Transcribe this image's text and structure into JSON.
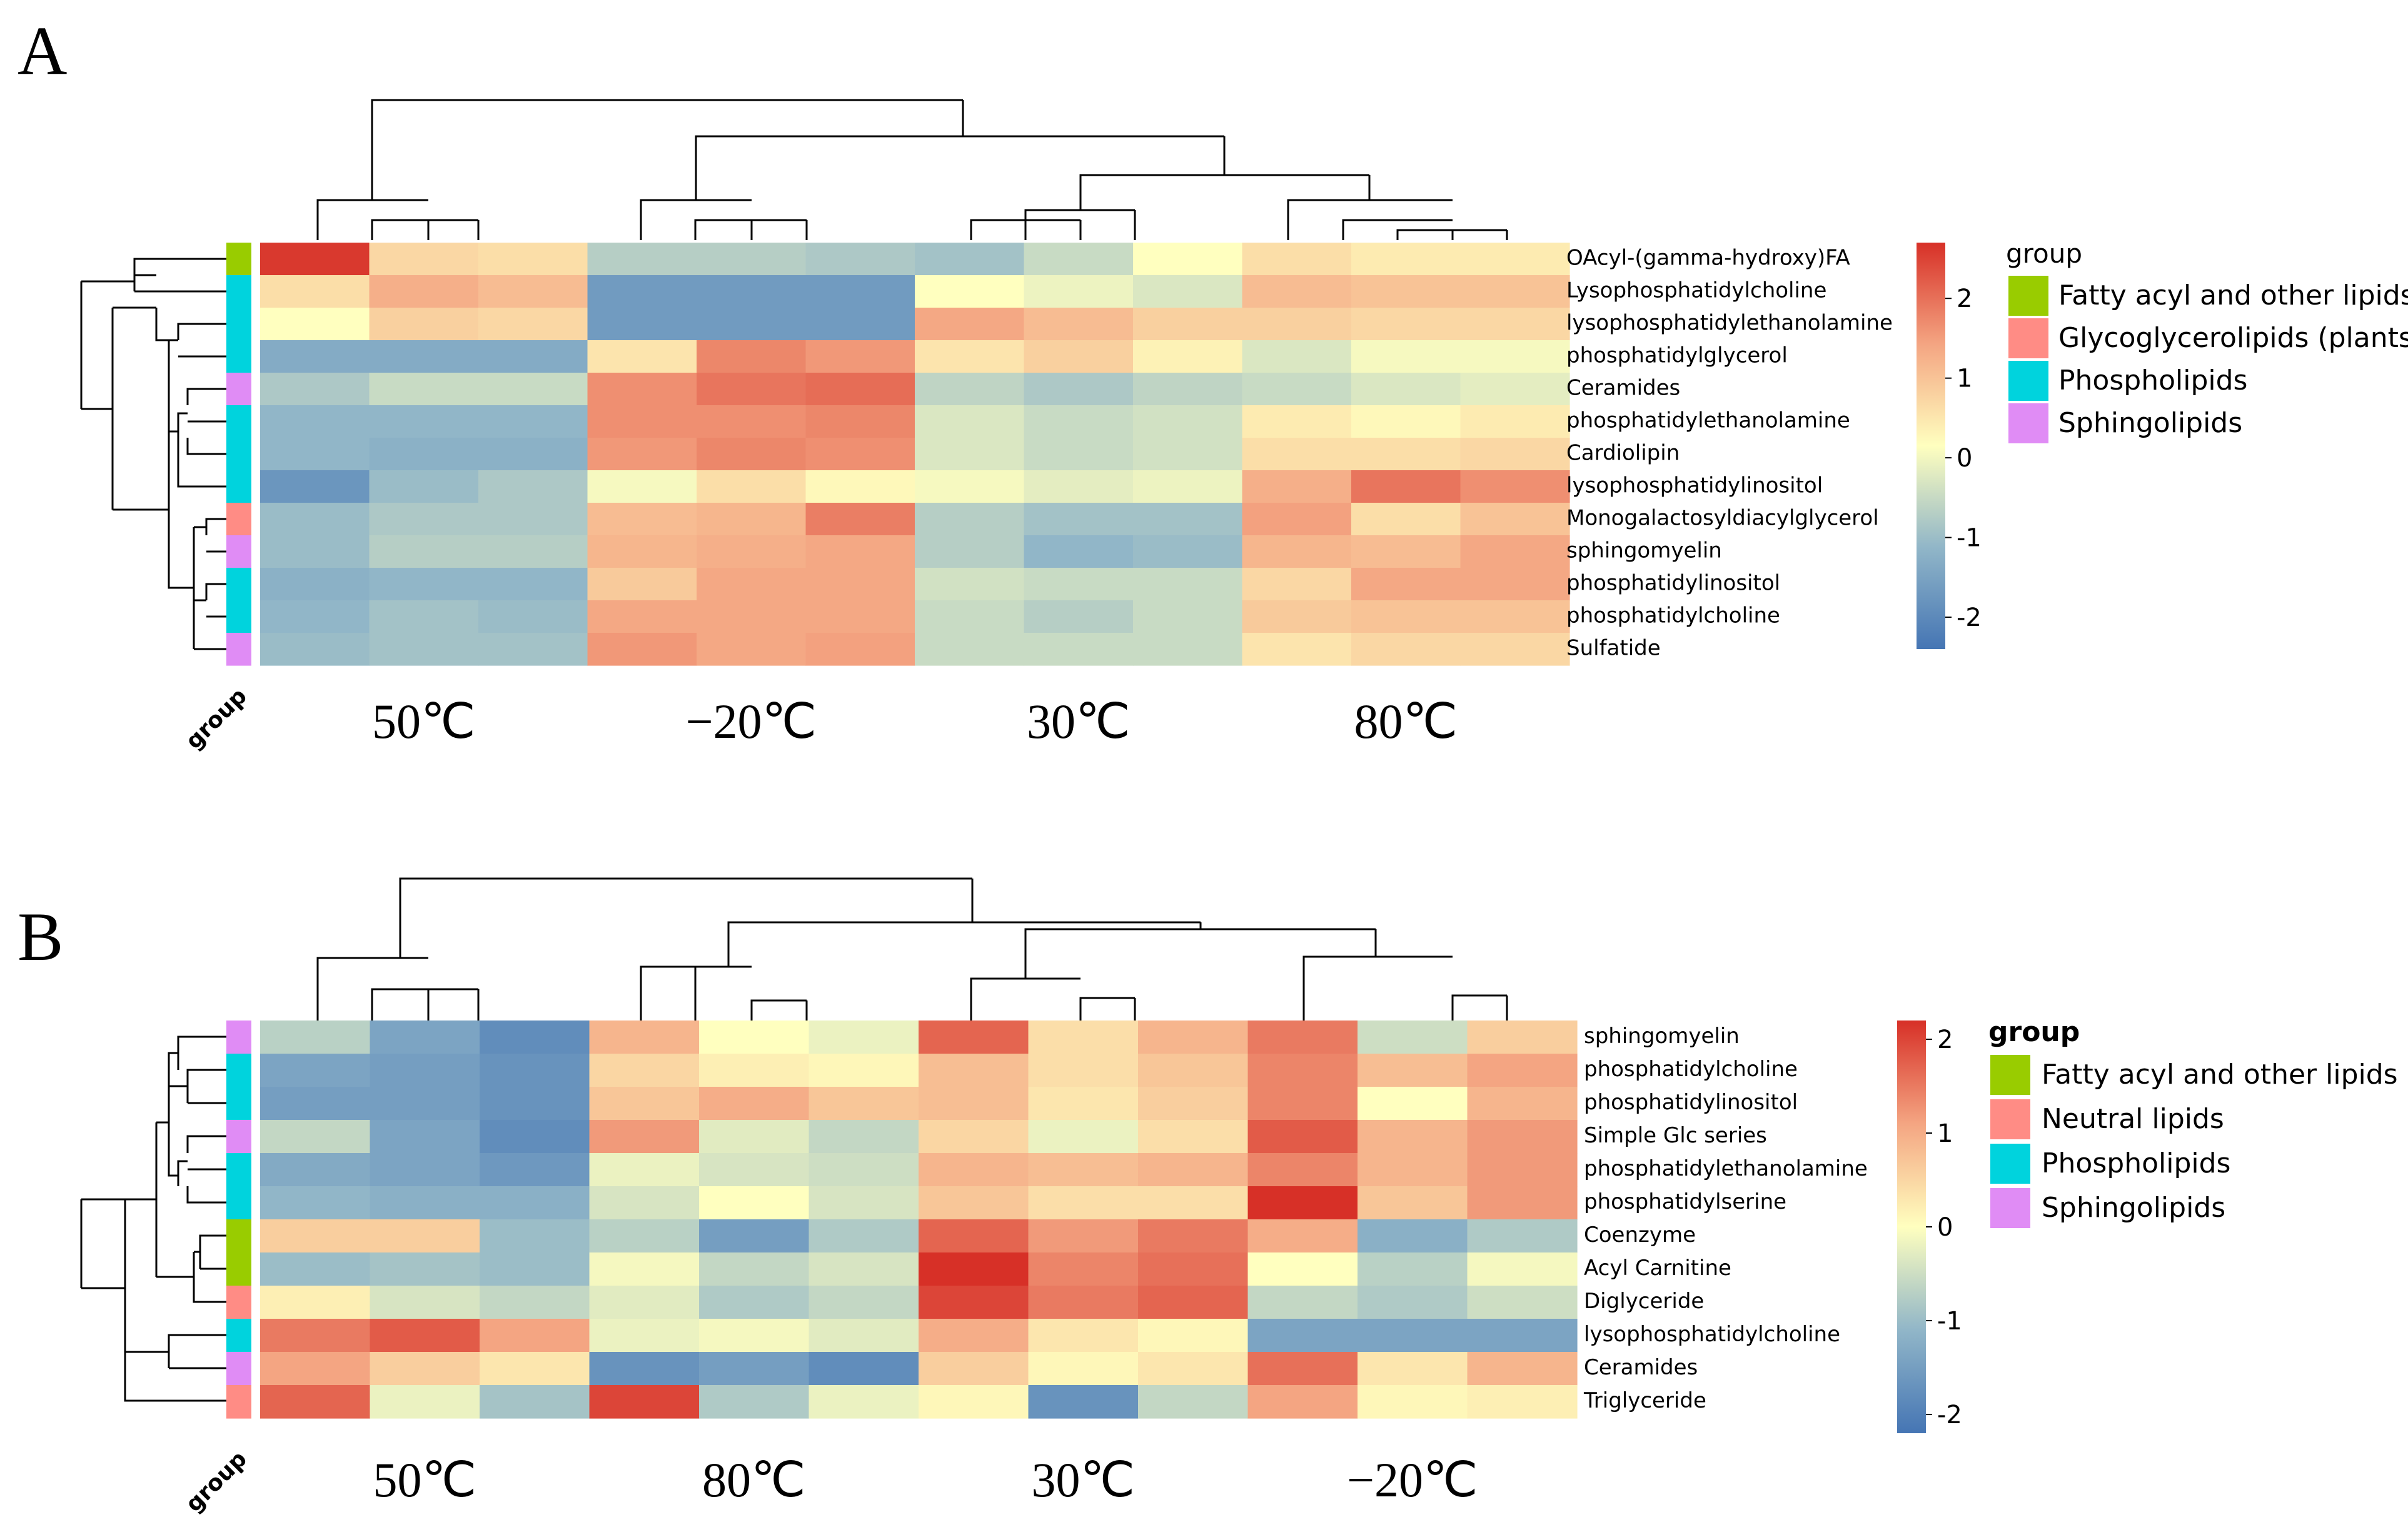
{
  "colors": {
    "scale": [
      "#4575b4",
      "#91b6c8",
      "#ffffbf",
      "#f4a582",
      "#d73027"
    ],
    "groups": {
      "Fatty acyl and other lipids": "#99cc00",
      "Glycoglycerolipids (plants)": "#ff8c85",
      "Neutral lipids": "#ff8c85",
      "Phospholipids": "#00d3dd",
      "Sphingolipids": "#e08cf5"
    }
  },
  "chart_data": [
    {
      "type": "heatmap",
      "panel": "A",
      "title": "",
      "rows": [
        "OAcyl-(gamma-hydroxy)FA",
        "Lysophosphatidylcholine",
        "lysophosphatidylethanolamine",
        "phosphatidylglycerol",
        "Ceramides",
        "phosphatidylethanolamine",
        "Cardiolipin",
        "lysophosphatidylinositol",
        "Monogalactosyldiacylglycerol",
        "sphingomyelin",
        "phosphatidylinositol",
        "phosphatidylcholine",
        "Sulfatide"
      ],
      "row_groups": [
        "Fatty acyl and other lipids",
        "Phospholipids",
        "Phospholipids",
        "Phospholipids",
        "Sphingolipids",
        "Phospholipids",
        "Phospholipids",
        "Phospholipids",
        "Glycoglycerolipids (plants)",
        "Sphingolipids",
        "Phospholipids",
        "Phospholipids",
        "Sphingolipids"
      ],
      "conditions": [
        "50℃",
        "−20℃",
        "30℃",
        "80℃"
      ],
      "column_condition": [
        0,
        0,
        0,
        1,
        1,
        1,
        2,
        2,
        2,
        3,
        3,
        3
      ],
      "values": [
        [
          2.6,
          0.6,
          0.5,
          -0.8,
          -0.8,
          -0.9,
          -1.0,
          -0.6,
          0.0,
          0.5,
          0.3,
          0.3
        ],
        [
          0.5,
          1.2,
          1.0,
          -1.7,
          -1.7,
          -1.7,
          0.0,
          -0.2,
          -0.4,
          1.0,
          0.9,
          0.9
        ],
        [
          0.0,
          0.7,
          0.6,
          -1.7,
          -1.7,
          -1.7,
          1.3,
          1.0,
          0.7,
          0.7,
          0.6,
          0.6
        ],
        [
          -1.4,
          -1.4,
          -1.4,
          0.4,
          1.7,
          1.5,
          0.4,
          0.7,
          0.2,
          -0.4,
          -0.1,
          -0.1
        ],
        [
          -0.9,
          -0.6,
          -0.6,
          1.6,
          1.9,
          2.0,
          -0.7,
          -0.9,
          -0.7,
          -0.6,
          -0.4,
          -0.3
        ],
        [
          -1.2,
          -1.2,
          -1.2,
          1.6,
          1.6,
          1.7,
          -0.4,
          -0.6,
          -0.5,
          0.3,
          0.1,
          0.3
        ],
        [
          -1.2,
          -1.3,
          -1.3,
          1.5,
          1.7,
          1.6,
          -0.4,
          -0.6,
          -0.5,
          0.5,
          0.5,
          0.6
        ],
        [
          -1.8,
          -1.1,
          -0.9,
          -0.1,
          0.5,
          0.1,
          -0.1,
          -0.3,
          -0.2,
          1.2,
          1.9,
          1.6
        ],
        [
          -1.1,
          -0.9,
          -0.9,
          1.0,
          1.1,
          1.8,
          -0.8,
          -1.0,
          -1.0,
          1.4,
          0.5,
          0.9
        ],
        [
          -1.1,
          -0.8,
          -0.8,
          1.1,
          1.2,
          1.3,
          -0.8,
          -1.2,
          -1.1,
          1.1,
          1.0,
          1.3
        ],
        [
          -1.3,
          -1.2,
          -1.2,
          0.8,
          1.3,
          1.3,
          -0.5,
          -0.6,
          -0.6,
          0.6,
          1.3,
          1.3
        ],
        [
          -1.2,
          -1.0,
          -1.1,
          1.3,
          1.3,
          1.3,
          -0.6,
          -0.8,
          -0.6,
          0.8,
          0.9,
          0.9
        ],
        [
          -1.1,
          -1.0,
          -1.0,
          1.5,
          1.3,
          1.4,
          -0.6,
          -0.6,
          -0.6,
          0.4,
          0.6,
          0.6
        ]
      ],
      "colorbar": {
        "ticks": [
          2,
          1,
          0,
          -1,
          -2
        ],
        "tick_labels": [
          "2",
          "1",
          "0",
          "-1",
          "-2"
        ],
        "min": -2.4,
        "max": 2.7
      },
      "legend": {
        "title": "group",
        "items": [
          "Fatty acyl and other lipids",
          "Glycoglycerolipids (plants)",
          "Phospholipids",
          "Sphingolipids"
        ]
      },
      "group_axis_label": "group"
    },
    {
      "type": "heatmap",
      "panel": "B",
      "title": "",
      "rows": [
        "sphingomyelin",
        "phosphatidylcholine",
        "phosphatidylinositol",
        "Simple Glc series",
        "phosphatidylethanolamine",
        "phosphatidylserine",
        "Coenzyme",
        "Acyl Carnitine",
        "Diglyceride",
        "lysophosphatidylcholine",
        "Ceramides",
        "Triglyceride"
      ],
      "row_groups": [
        "Sphingolipids",
        "Phospholipids",
        "Phospholipids",
        "Sphingolipids",
        "Phospholipids",
        "Phospholipids",
        "Fatty acyl and other lipids",
        "Fatty acyl and other lipids",
        "Neutral lipids",
        "Phospholipids",
        "Sphingolipids",
        "Neutral lipids"
      ],
      "conditions": [
        "50℃",
        "80℃",
        "30℃",
        "−20℃"
      ],
      "column_condition": [
        0,
        0,
        0,
        1,
        1,
        1,
        2,
        2,
        2,
        3,
        3,
        3
      ],
      "values": [
        [
          -0.7,
          -1.4,
          -1.8,
          0.9,
          0.0,
          -0.2,
          1.7,
          0.4,
          0.9,
          1.5,
          -0.5,
          0.6
        ],
        [
          -1.4,
          -1.5,
          -1.7,
          0.5,
          0.2,
          0.1,
          0.8,
          0.4,
          0.7,
          1.4,
          0.8,
          1.1
        ],
        [
          -1.5,
          -1.5,
          -1.7,
          0.7,
          1.0,
          0.7,
          0.8,
          0.3,
          0.6,
          1.4,
          0.0,
          0.9
        ],
        [
          -0.6,
          -1.4,
          -1.8,
          1.2,
          -0.3,
          -0.6,
          0.5,
          -0.2,
          0.4,
          1.8,
          0.9,
          1.2
        ],
        [
          -1.3,
          -1.4,
          -1.6,
          -0.2,
          -0.4,
          -0.5,
          0.9,
          0.8,
          0.9,
          1.4,
          0.9,
          1.2
        ],
        [
          -1.1,
          -1.2,
          -1.2,
          -0.4,
          0.0,
          -0.4,
          0.7,
          0.4,
          0.4,
          2.2,
          0.7,
          1.2
        ],
        [
          0.6,
          0.6,
          -1.0,
          -0.7,
          -1.5,
          -0.8,
          1.7,
          1.2,
          1.5,
          1.0,
          -1.2,
          -0.8
        ],
        [
          -1.0,
          -0.9,
          -1.0,
          -0.1,
          -0.6,
          -0.4,
          2.2,
          1.4,
          1.6,
          0.0,
          -0.7,
          -0.1
        ],
        [
          0.2,
          -0.4,
          -0.6,
          -0.3,
          -0.8,
          -0.6,
          2.0,
          1.5,
          1.7,
          -0.6,
          -0.8,
          -0.5
        ],
        [
          1.5,
          1.8,
          1.1,
          -0.2,
          -0.1,
          -0.3,
          1.0,
          0.3,
          0.1,
          -1.4,
          -1.4,
          -1.4
        ],
        [
          1.1,
          0.6,
          0.3,
          -1.7,
          -1.5,
          -1.8,
          0.6,
          0.1,
          0.3,
          1.6,
          0.3,
          0.9
        ],
        [
          1.7,
          -0.2,
          -0.9,
          2.0,
          -0.8,
          -0.2,
          0.1,
          -1.7,
          -0.6,
          1.1,
          0.1,
          0.2
        ]
      ],
      "colorbar": {
        "ticks": [
          2,
          1,
          0,
          -1,
          -2
        ],
        "tick_labels": [
          "2",
          "1",
          "0",
          "-1",
          "-2"
        ],
        "min": -2.2,
        "max": 2.2
      },
      "legend": {
        "title": "group",
        "items": [
          "Fatty acyl and other lipids",
          "Neutral lipids",
          "Phospholipids",
          "Sphingolipids"
        ]
      },
      "group_axis_label": "group"
    }
  ]
}
